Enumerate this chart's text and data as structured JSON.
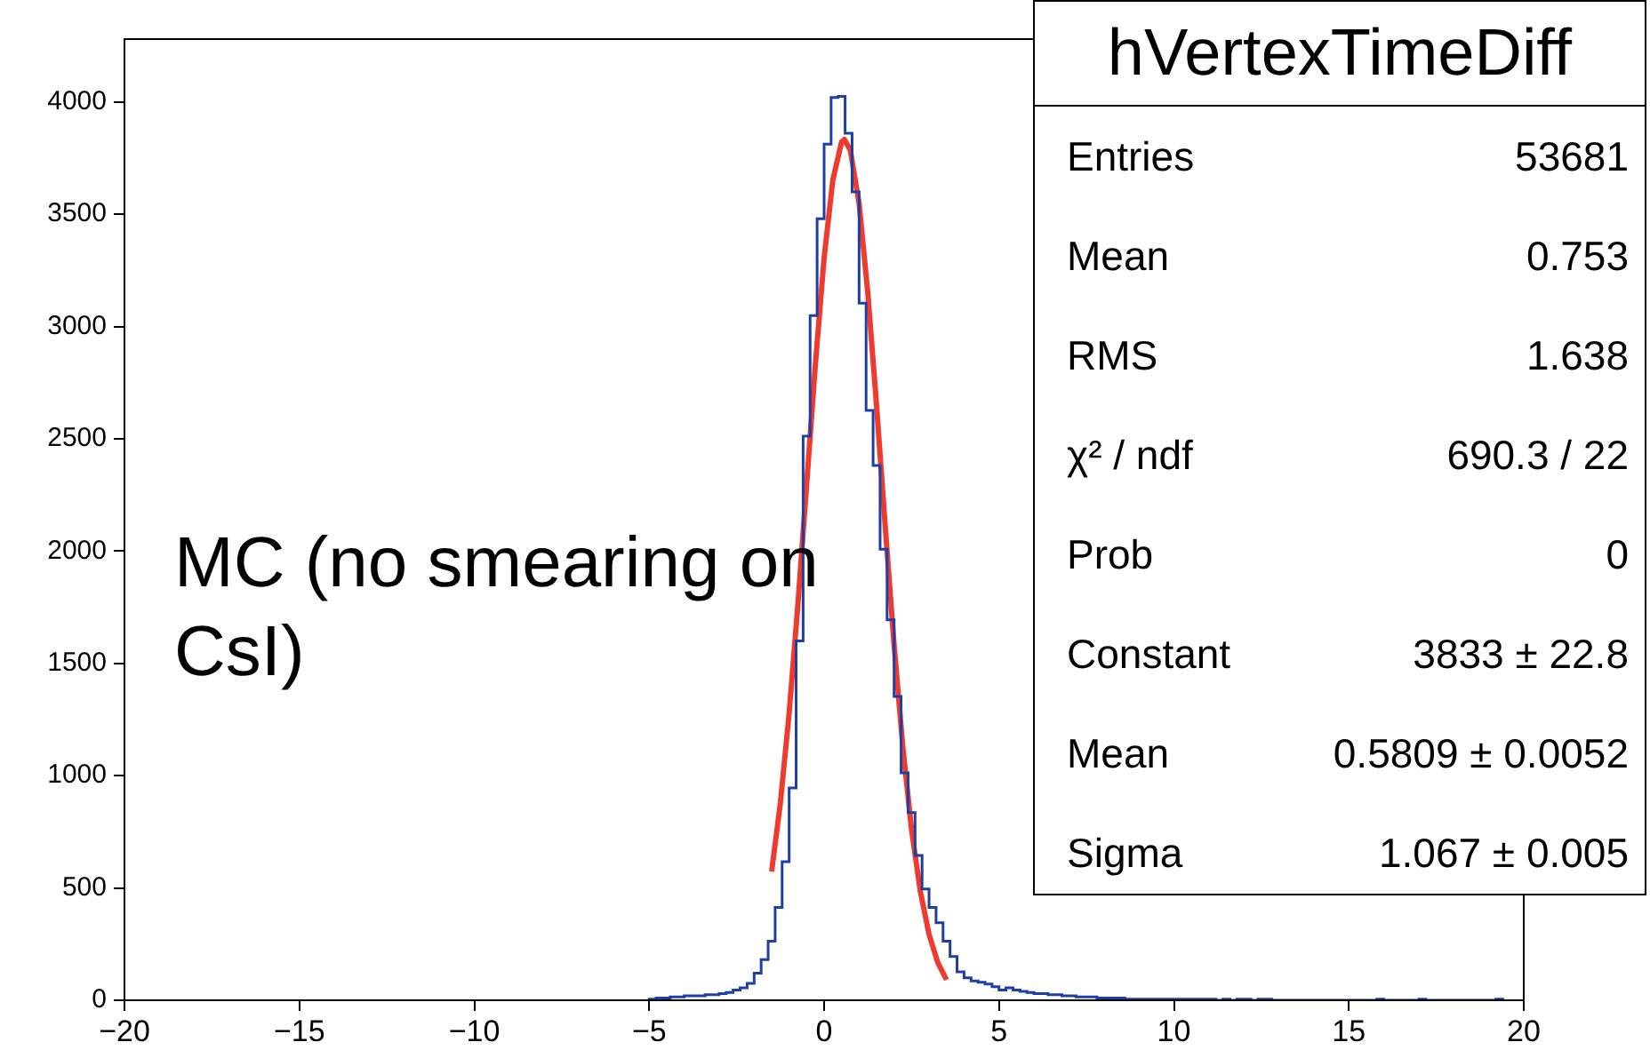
{
  "chart_data": {
    "type": "histogram",
    "title": "hVertexTimeDiff",
    "xlim": [
      -20,
      20
    ],
    "xticks": [
      -20,
      -15,
      -10,
      -5,
      0,
      5,
      10,
      15,
      20
    ],
    "ylim": [
      0,
      4280
    ],
    "yticks": [
      0,
      500,
      1000,
      1500,
      2000,
      2500,
      3000,
      3500,
      4000
    ],
    "annotations": [
      "MC (no smearing on CsI)",
      "Entries",
      "53681",
      "Mean",
      "0.753",
      "RMS",
      "1.638",
      "χ² / ndf",
      "690.3 / 22",
      "Prob",
      "0",
      "Constant",
      "3833 ± 22.8",
      "Mean",
      "0.5809 ± 0.0052",
      "Sigma",
      "1.067 ± 0.005"
    ],
    "series": [
      {
        "color": "#1f3fa6",
        "bins": [
          -5,
          -4.8,
          -4.6,
          -4.4,
          -4.2,
          -4,
          -3.8,
          -3.6,
          -3.4,
          -3.2,
          -3,
          -2.8,
          -2.6,
          -2.4,
          -2.2,
          -2,
          -1.8,
          -1.6,
          -1.4,
          -1.2,
          -1,
          -0.8,
          -0.6,
          -0.4,
          -0.2,
          0,
          0.2,
          0.4,
          0.6,
          0.8,
          1,
          1.2,
          1.4,
          1.6,
          1.8,
          2,
          2.2,
          2.4,
          2.6,
          2.8,
          3,
          3.2,
          3.4,
          3.6,
          3.8,
          4,
          4.2,
          4.4,
          4.6,
          4.8,
          5,
          5.2,
          5.4,
          5.6,
          5.8,
          6,
          6.2,
          6.4,
          6.6,
          6.8,
          7,
          7.2,
          7.4,
          7.6,
          7.8,
          8,
          8.2,
          8.4,
          8.6,
          8.8,
          9,
          9.2,
          9.4,
          9.6,
          9.8,
          10,
          10.2,
          10.4,
          10.6,
          10.8,
          11,
          11.2,
          11.4,
          11.6,
          11.8,
          12,
          12.2,
          12.4,
          12.6,
          12.8,
          13,
          13.2,
          13.4,
          13.6,
          13.8,
          14,
          14.2,
          14.4,
          14.6,
          14.8,
          15,
          15.2,
          15.4,
          15.6,
          15.8,
          16,
          16.2,
          16.4,
          16.6,
          16.8,
          17,
          17.2,
          17.4,
          17.6,
          17.8,
          18,
          18.2,
          18.4,
          18.6,
          18.8,
          19,
          19.2,
          19.4
        ],
        "values": [
          5,
          10,
          10,
          15,
          15,
          20,
          20,
          20,
          25,
          25,
          30,
          35,
          45,
          55,
          75,
          121,
          181,
          263,
          413,
          617,
          945,
          1600,
          2512,
          3049,
          3480,
          3812,
          4020,
          4025,
          3861,
          3600,
          3104,
          2627,
          2381,
          2008,
          1694,
          1353,
          1013,
          836,
          645,
          495,
          413,
          345,
          263,
          195,
          127,
          100,
          86,
          80,
          72,
          60,
          45,
          55,
          45,
          40,
          35,
          30,
          30,
          25,
          25,
          20,
          20,
          15,
          15,
          15,
          10,
          10,
          10,
          10,
          5,
          5,
          5,
          5,
          5,
          5,
          5,
          5,
          5,
          5,
          5,
          5,
          5,
          0,
          5,
          0,
          5,
          5,
          0,
          5,
          5,
          0,
          0,
          0,
          0,
          0,
          0,
          0,
          0,
          0,
          0,
          0,
          0,
          0,
          0,
          0,
          5,
          0,
          0,
          0,
          0,
          0,
          5,
          0,
          0,
          0,
          0,
          0,
          0,
          0,
          0,
          0,
          0,
          5
        ]
      },
      {
        "type": "line",
        "color": "#ee3b2f",
        "x": [
          -1.5,
          -1.25,
          -1,
          -0.75,
          -0.5,
          -0.25,
          0,
          0.25,
          0.5,
          0.58,
          0.75,
          1,
          1.25,
          1.5,
          1.75,
          2,
          2.25,
          2.5,
          2.75,
          3,
          3.25,
          3.5
        ],
        "values": [
          573,
          879,
          1278,
          1761,
          2295,
          2831,
          3306,
          3653,
          3822,
          3833,
          3785,
          3548,
          3148,
          2645,
          2104,
          1583,
          1128,
          760,
          485,
          293,
          168,
          91
        ]
      }
    ]
  }
}
